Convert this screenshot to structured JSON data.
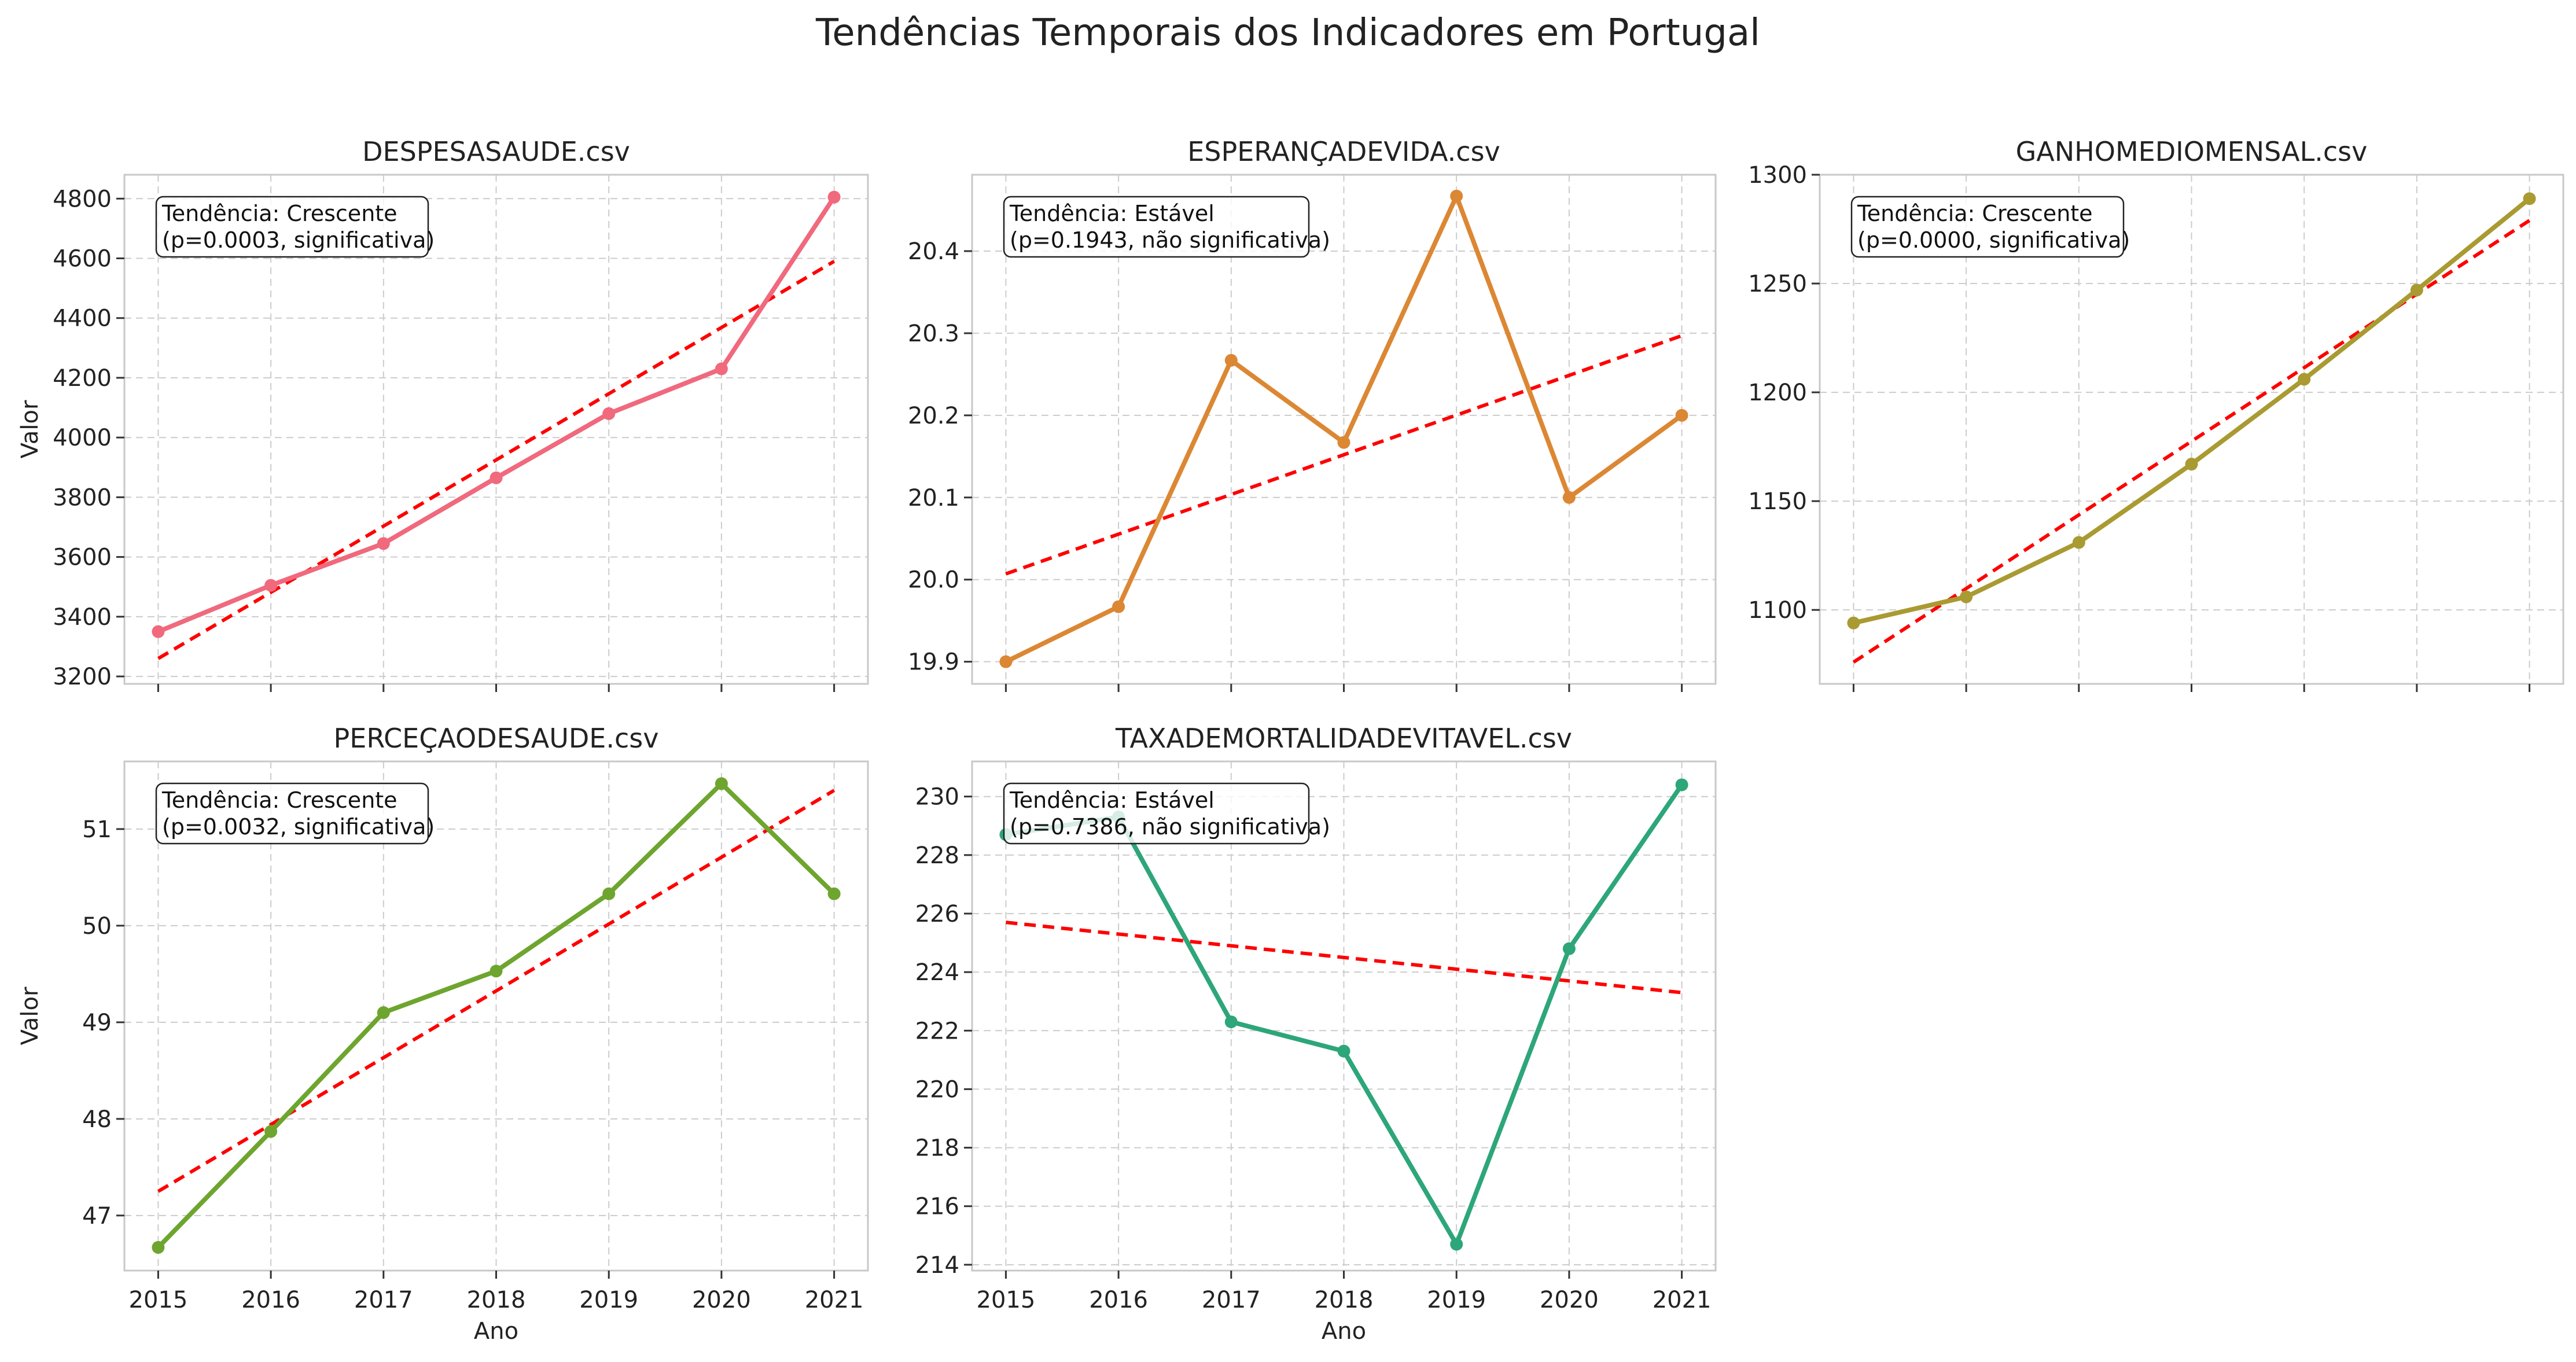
{
  "figure": {
    "title": "Tendências Temporais dos Indicadores em Portugal",
    "trend_color": "#ff0000"
  },
  "chart_data": [
    {
      "type": "line",
      "title": "DESPESASAUDE.csv",
      "xlabel": "",
      "ylabel": "Valor",
      "color": "#f0697d",
      "x": [
        2015,
        2016,
        2017,
        2018,
        2019,
        2020,
        2021
      ],
      "series": [
        {
          "values": [
            3350,
            3505,
            3645,
            3865,
            4080,
            4230,
            4805
          ]
        }
      ],
      "trend": [
        3260,
        4590
      ],
      "ylim": [
        3175,
        4880
      ],
      "yticks": [
        "3200",
        "3400",
        "3600",
        "3800",
        "4000",
        "4200",
        "4400",
        "4600",
        "4800"
      ],
      "yticks_values": [
        3200,
        3400,
        3600,
        3800,
        4000,
        4200,
        4400,
        4600,
        4800
      ],
      "xticks_labels_visible": false,
      "annotation": [
        "Tendência: Crescente",
        "(p=0.0003, significativa)"
      ],
      "grid": true
    },
    {
      "type": "line",
      "title": "ESPERANÇADEVIDA.csv",
      "xlabel": "",
      "ylabel": "",
      "color": "#dc8733",
      "x": [
        2015,
        2016,
        2017,
        2018,
        2019,
        2020,
        2021
      ],
      "series": [
        {
          "values": [
            19.9,
            19.967,
            20.267,
            20.167,
            20.467,
            20.1,
            20.2
          ]
        }
      ],
      "trend": [
        20.007,
        20.297
      ],
      "ylim": [
        19.873,
        20.493
      ],
      "yticks": [
        "19.9",
        "20.0",
        "20.1",
        "20.2",
        "20.3",
        "20.4"
      ],
      "yticks_values": [
        19.9,
        20.0,
        20.1,
        20.2,
        20.3,
        20.4
      ],
      "xticks_labels_visible": false,
      "annotation": [
        "Tendência: Estável",
        "(p=0.1943, não significativa)"
      ],
      "grid": true
    },
    {
      "type": "line",
      "title": "GANHOMEDIOMENSAL.csv",
      "xlabel": "",
      "ylabel": "",
      "color": "#a99a32",
      "x": [
        2015,
        2016,
        2017,
        2018,
        2019,
        2020,
        2021
      ],
      "series": [
        {
          "values": [
            1094,
            1106,
            1131,
            1167,
            1206,
            1247,
            1289
          ]
        }
      ],
      "trend": [
        1076,
        1279
      ],
      "ylim": [
        1066,
        1300
      ],
      "yticks": [
        "1100",
        "1150",
        "1200",
        "1250",
        "1300"
      ],
      "yticks_values": [
        1100,
        1150,
        1200,
        1250,
        1300
      ],
      "xticks_labels_visible": false,
      "annotation": [
        "Tendência: Crescente",
        "(p=0.0000, significativa)"
      ],
      "grid": true
    },
    {
      "type": "line",
      "title": "PERCEÇAODESAUDE.csv",
      "xlabel": "Ano",
      "ylabel": "Valor",
      "color": "#6ea52f",
      "x": [
        2015,
        2016,
        2017,
        2018,
        2019,
        2020,
        2021
      ],
      "series": [
        {
          "values": [
            46.67,
            47.87,
            49.1,
            49.53,
            50.33,
            51.47,
            50.33
          ]
        }
      ],
      "trend": [
        47.25,
        51.4
      ],
      "ylim": [
        46.43,
        51.7
      ],
      "yticks": [
        "47",
        "48",
        "49",
        "50",
        "51"
      ],
      "yticks_values": [
        47,
        48,
        49,
        50,
        51
      ],
      "xticks_labels_visible": true,
      "annotation": [
        "Tendência: Crescente",
        "(p=0.0032, significativa)"
      ],
      "grid": true
    },
    {
      "type": "line",
      "title": "TAXADEMORTALIDADEVITAVEL.csv",
      "xlabel": "Ano",
      "ylabel": "",
      "color": "#2da679",
      "x": [
        2015,
        2016,
        2017,
        2018,
        2019,
        2020,
        2021
      ],
      "series": [
        {
          "values": [
            228.7,
            229.3,
            222.3,
            221.3,
            214.7,
            224.8,
            230.4
          ]
        }
      ],
      "trend": [
        225.7,
        223.3
      ],
      "ylim": [
        213.8,
        231.2
      ],
      "yticks": [
        "214",
        "216",
        "218",
        "220",
        "222",
        "224",
        "226",
        "228",
        "230"
      ],
      "yticks_values": [
        214,
        216,
        218,
        220,
        222,
        224,
        226,
        228,
        230
      ],
      "xticks_labels_visible": true,
      "annotation": [
        "Tendência: Estável",
        "(p=0.7386, não significativa)"
      ],
      "grid": true
    }
  ]
}
